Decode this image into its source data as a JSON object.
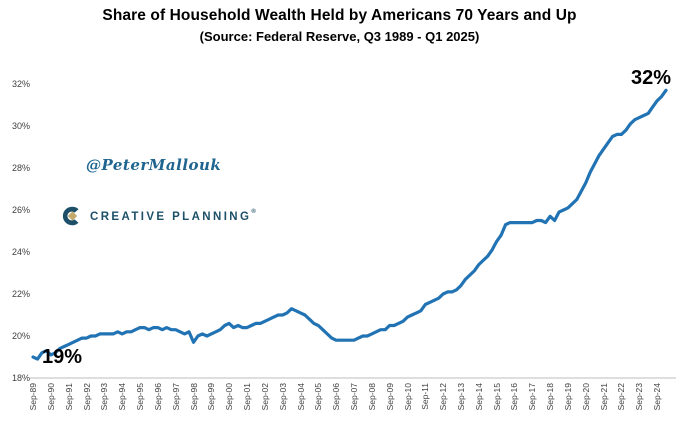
{
  "header": {
    "title": "Share of Household Wealth Held by Americans 70 Years and Up",
    "subtitle": "(Source: Federal Reserve, Q3 1989 - Q1 2025)"
  },
  "watermark": {
    "handle": "@PeterMallouk"
  },
  "logo": {
    "text": "CREATIVE PLANNING",
    "trademark": "®",
    "primary_color": "#1D5068",
    "diamond_color": "#C2A96B"
  },
  "chart_data": {
    "type": "line",
    "title": "Share of Household Wealth Held by Americans 70 Years and Up",
    "subtitle": "(Source: Federal Reserve, Q3 1989 - Q1 2025)",
    "frequency": "quarterly",
    "x_start": "1989-Q3",
    "x_end": "2025-Q1",
    "xticklabels": [
      "Sep-89",
      "Sep-90",
      "Sep-91",
      "Sep-92",
      "Sep-93",
      "Sep-94",
      "Sep-95",
      "Sep-96",
      "Sep-97",
      "Sep-98",
      "Sep-99",
      "Sep-00",
      "Sep-01",
      "Sep-02",
      "Sep-03",
      "Sep-04",
      "Sep-05",
      "Sep-06",
      "Sep-07",
      "Sep-08",
      "Sep-09",
      "Sep-10",
      "Sep-11",
      "Sep-12",
      "Sep-13",
      "Sep-14",
      "Sep-15",
      "Sep-16",
      "Sep-17",
      "Sep-18",
      "Sep-19",
      "Sep-20",
      "Sep-21",
      "Sep-22",
      "Sep-23",
      "Sep-24"
    ],
    "xtick_every_n_points": 4,
    "yticks": [
      18,
      20,
      22,
      24,
      26,
      28,
      30,
      32
    ],
    "ytick_suffix": "%",
    "ylim": [
      18,
      32
    ],
    "ylabel": "",
    "xlabel": "",
    "grid": false,
    "legend": "none",
    "line_color": "#2173B4",
    "axis_line_color": "#c9c9c9",
    "values": [
      19.0,
      18.9,
      19.2,
      19.3,
      19.1,
      19.2,
      19.4,
      19.5,
      19.6,
      19.7,
      19.8,
      19.9,
      19.9,
      20.0,
      20.0,
      20.1,
      20.1,
      20.1,
      20.1,
      20.2,
      20.1,
      20.2,
      20.2,
      20.3,
      20.4,
      20.4,
      20.3,
      20.4,
      20.4,
      20.3,
      20.4,
      20.3,
      20.3,
      20.2,
      20.1,
      20.2,
      19.7,
      20.0,
      20.1,
      20.0,
      20.1,
      20.2,
      20.3,
      20.5,
      20.6,
      20.4,
      20.5,
      20.4,
      20.4,
      20.5,
      20.6,
      20.6,
      20.7,
      20.8,
      20.9,
      21.0,
      21.0,
      21.1,
      21.3,
      21.2,
      21.1,
      21.0,
      20.8,
      20.6,
      20.5,
      20.3,
      20.1,
      19.9,
      19.8,
      19.8,
      19.8,
      19.8,
      19.8,
      19.9,
      20.0,
      20.0,
      20.1,
      20.2,
      20.3,
      20.3,
      20.5,
      20.5,
      20.6,
      20.7,
      20.9,
      21.0,
      21.1,
      21.2,
      21.5,
      21.6,
      21.7,
      21.8,
      22.0,
      22.1,
      22.1,
      22.2,
      22.4,
      22.7,
      22.9,
      23.1,
      23.4,
      23.6,
      23.8,
      24.1,
      24.5,
      24.8,
      25.3,
      25.4,
      25.4,
      25.4,
      25.4,
      25.4,
      25.4,
      25.5,
      25.5,
      25.4,
      25.7,
      25.5,
      25.9,
      26.0,
      26.1,
      26.3,
      26.5,
      26.9,
      27.3,
      27.8,
      28.2,
      28.6,
      28.9,
      29.2,
      29.5,
      29.6,
      29.6,
      29.8,
      30.1,
      30.3,
      30.4,
      30.5,
      30.6,
      30.9,
      31.2,
      31.4,
      31.7
    ],
    "annotations": [
      {
        "label": "19%",
        "point": "1989-Q3",
        "position": "start"
      },
      {
        "label": "32%",
        "point": "2025-Q1",
        "position": "end"
      }
    ]
  }
}
